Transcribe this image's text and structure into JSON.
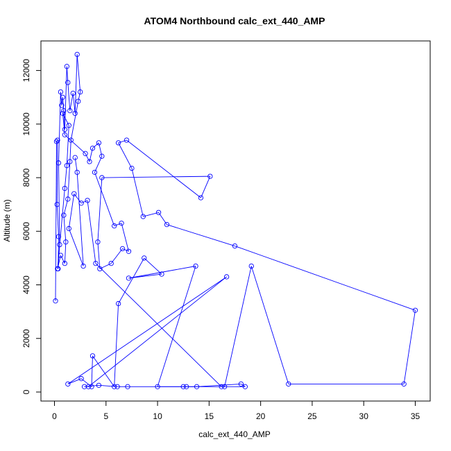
{
  "chart_data": {
    "type": "line",
    "title": "ATOM4 Northbound calc_ext_440_AMP",
    "xlabel": "calc_ext_440_AMP",
    "ylabel": "Altitude (m)",
    "xlim": [
      0,
      35
    ],
    "ylim": [
      0,
      12600
    ],
    "x_ticks": [
      "0",
      "5",
      "10",
      "15",
      "20",
      "25",
      "30",
      "35"
    ],
    "y_ticks": [
      "0",
      "2000",
      "4000",
      "6000",
      "8000",
      "10000",
      "12000"
    ],
    "series": [
      {
        "color": "#0000ff",
        "marker": "open-circle",
        "points": [
          [
            0.1,
            3400
          ],
          [
            0.2,
            9350
          ],
          [
            0.3,
            9400
          ],
          [
            0.25,
            7000
          ],
          [
            0.4,
            5800
          ],
          [
            0.35,
            4600
          ],
          [
            0.5,
            5500
          ],
          [
            0.4,
            8550
          ],
          [
            0.6,
            11200
          ],
          [
            0.7,
            10700
          ],
          [
            0.8,
            11000
          ],
          [
            0.9,
            10500
          ],
          [
            1.0,
            9800
          ],
          [
            1.2,
            12150
          ],
          [
            1.3,
            11550
          ],
          [
            1.5,
            10500
          ],
          [
            1.8,
            11150
          ],
          [
            2.0,
            10400
          ],
          [
            2.2,
            12600
          ],
          [
            2.5,
            11200
          ],
          [
            2.3,
            10850
          ],
          [
            1.6,
            9400
          ],
          [
            1.5,
            8600
          ],
          [
            1.3,
            7200
          ],
          [
            0.9,
            6600
          ],
          [
            1.1,
            5600
          ],
          [
            1.0,
            4800
          ],
          [
            0.6,
            5100
          ],
          [
            0.3,
            4600
          ],
          [
            1.0,
            7600
          ],
          [
            1.2,
            8450
          ],
          [
            1.4,
            9950
          ],
          [
            0.8,
            10400
          ],
          [
            1.0,
            9600
          ],
          [
            3.0,
            8900
          ],
          [
            3.4,
            8600
          ],
          [
            3.7,
            9100
          ],
          [
            4.3,
            9300
          ],
          [
            4.6,
            8800
          ],
          [
            3.9,
            8200
          ],
          [
            5.8,
            6200
          ],
          [
            6.5,
            6300
          ],
          [
            7.2,
            5250
          ],
          [
            6.6,
            5350
          ],
          [
            5.5,
            4800
          ],
          [
            4.4,
            4600
          ],
          [
            4.2,
            5600
          ],
          [
            4.6,
            8000
          ],
          [
            15.1,
            8050
          ],
          [
            14.2,
            7250
          ],
          [
            7.0,
            9400
          ],
          [
            6.2,
            9300
          ],
          [
            7.5,
            8350
          ],
          [
            8.6,
            6550
          ],
          [
            10.1,
            6700
          ],
          [
            10.9,
            6250
          ],
          [
            17.5,
            5450
          ],
          [
            35.0,
            3050
          ],
          [
            33.9,
            300
          ],
          [
            22.7,
            300
          ],
          [
            19.1,
            4700
          ],
          [
            16.5,
            200
          ],
          [
            12.5,
            200
          ],
          [
            10.0,
            200
          ],
          [
            13.7,
            4700
          ],
          [
            7.2,
            4250
          ],
          [
            10.4,
            4400
          ],
          [
            8.7,
            5000
          ],
          [
            6.2,
            3300
          ],
          [
            5.8,
            200
          ],
          [
            3.7,
            1350
          ],
          [
            3.6,
            200
          ],
          [
            2.6,
            500
          ],
          [
            1.3,
            300
          ],
          [
            16.7,
            4300
          ],
          [
            3.3,
            200
          ],
          [
            2.9,
            200
          ],
          [
            4.3,
            250
          ],
          [
            6.1,
            200
          ],
          [
            7.1,
            200
          ],
          [
            12.8,
            200
          ],
          [
            13.8,
            200
          ],
          [
            18.1,
            300
          ],
          [
            18.5,
            200
          ],
          [
            16.2,
            200
          ],
          [
            4.0,
            4800
          ],
          [
            3.2,
            7150
          ],
          [
            2.6,
            7050
          ],
          [
            1.9,
            7400
          ],
          [
            1.4,
            6100
          ],
          [
            2.8,
            4700
          ],
          [
            2.2,
            8200
          ],
          [
            2.0,
            8750
          ]
        ]
      }
    ],
    "grid": false
  }
}
